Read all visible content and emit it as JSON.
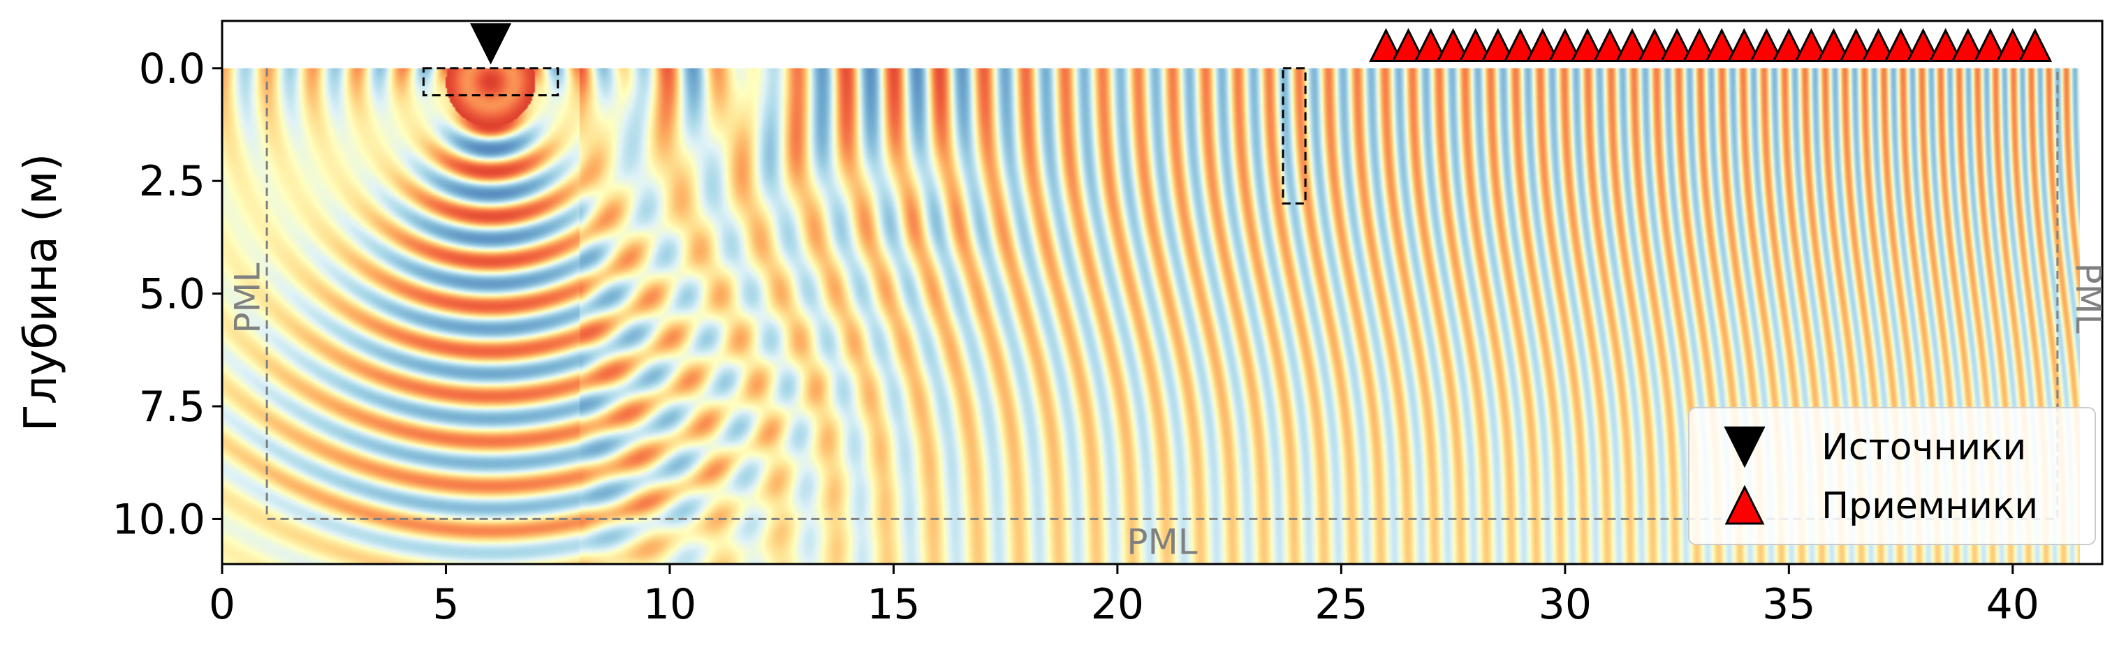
{
  "chart_data": {
    "type": "heatmap",
    "title": "",
    "xlabel": "",
    "ylabel": "Глубина (м)",
    "xlim": [
      0,
      42
    ],
    "ylim": [
      11,
      -1.05
    ],
    "x_ticks": [
      "0",
      "5",
      "10",
      "15",
      "20",
      "25",
      "30",
      "35",
      "40"
    ],
    "x_tick_values": [
      0,
      5,
      10,
      15,
      20,
      25,
      30,
      35,
      40
    ],
    "y_ticks": [
      "0.0",
      "2.5",
      "5.0",
      "7.5",
      "10.0"
    ],
    "y_tick_values": [
      0,
      2.5,
      5,
      7.5,
      10
    ],
    "colormap": "RdYlBu_r",
    "colors": {
      "red": "#a50026",
      "blue": "#313695",
      "neutral": "#fff8c0",
      "pml_line": "#808080"
    },
    "wavefield": {
      "source_x": 6.0,
      "source_depth": 0.3,
      "x_extent": [
        0,
        41.5
      ],
      "depth_extent": [
        0,
        11
      ]
    },
    "pml": {
      "label": "PML",
      "boundary_x": [
        1.0,
        41.0
      ],
      "boundary_depth": 10.0
    },
    "source_zone": {
      "x": [
        4.5,
        7.5
      ],
      "depth": [
        0,
        0.6
      ]
    },
    "observation_zone": {
      "x": [
        23.7,
        24.2
      ],
      "depth": [
        0,
        3.0
      ]
    },
    "sources": {
      "name": "Источники",
      "marker": "triangle-down",
      "color": "#000000",
      "x": [
        6.0
      ]
    },
    "receivers": {
      "name": "Приемники",
      "marker": "triangle-up",
      "color": "#ff0000",
      "x": [
        26.0,
        26.5,
        27.0,
        27.5,
        28.0,
        28.5,
        29.0,
        29.5,
        30.0,
        30.5,
        31.0,
        31.5,
        32.0,
        32.5,
        33.0,
        33.5,
        34.0,
        34.5,
        35.0,
        35.5,
        36.0,
        36.5,
        37.0,
        37.5,
        38.0,
        38.5,
        39.0,
        39.5,
        40.0,
        40.5
      ]
    },
    "legend": {
      "position": "bottom-right",
      "entries": [
        "Источники",
        "Приемники"
      ]
    }
  }
}
